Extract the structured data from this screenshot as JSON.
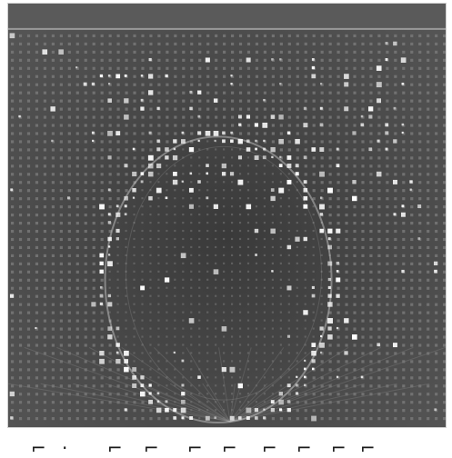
{
  "image": {
    "subject": "photomultiplier-tube-array-with-cherenkov-ring",
    "colors": {
      "background": "#4a4a4a",
      "pmt_dim": "#6e6e6e",
      "pmt_hit": "#f2f2f2",
      "pmt_mid": "#b9b9b9",
      "ring": "#ffffff"
    }
  },
  "caption": {
    "text": "",
    "color": "#1a1a1a"
  }
}
